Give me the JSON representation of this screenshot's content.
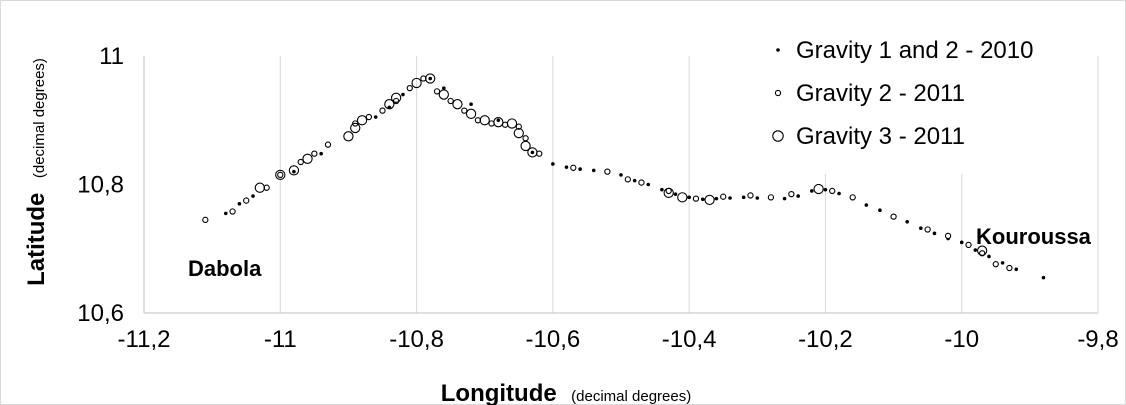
{
  "chart_data": {
    "type": "scatter",
    "xlabel": "Longitude",
    "xlabel_unit": "(decimal degrees)",
    "ylabel": "Latitude",
    "ylabel_unit": "(decimal degrees)",
    "xlim": [
      -11.2,
      -9.8
    ],
    "ylim": [
      10.6,
      11.0
    ],
    "x_ticks": [
      -11.2,
      -11.0,
      -10.8,
      -10.6,
      -10.4,
      -10.2,
      -10.0,
      -9.8
    ],
    "x_tick_labels": [
      "-11,2",
      "-11",
      "-10,8",
      "-10,6",
      "-10,4",
      "-10,2",
      "-10",
      "-9,8"
    ],
    "y_ticks": [
      10.6,
      10.8,
      11.0
    ],
    "y_tick_labels": [
      "10,6",
      "10,8",
      "11"
    ],
    "grid": "vertical",
    "legend_position": "top-right",
    "annotations": [
      {
        "text": "Dabola",
        "x": -11.06,
        "y": 10.69
      },
      {
        "text": "Kouroussa",
        "x": -9.9,
        "y": 10.72
      }
    ],
    "series": [
      {
        "name": "Gravity 1 and 2 - 2010",
        "marker": "dot",
        "points": [
          [
            -11.08,
            10.755
          ],
          [
            -11.06,
            10.77
          ],
          [
            -11.04,
            10.782
          ],
          [
            -10.98,
            10.82
          ],
          [
            -10.94,
            10.848
          ],
          [
            -10.86,
            10.905
          ],
          [
            -10.84,
            10.92
          ],
          [
            -10.82,
            10.94
          ],
          [
            -10.78,
            10.965
          ],
          [
            -10.76,
            10.95
          ],
          [
            -10.72,
            10.925
          ],
          [
            -10.68,
            10.9
          ],
          [
            -10.64,
            10.87
          ],
          [
            -10.63,
            10.85
          ],
          [
            -10.6,
            10.832
          ],
          [
            -10.58,
            10.827
          ],
          [
            -10.56,
            10.824
          ],
          [
            -10.54,
            10.822
          ],
          [
            -10.52,
            10.82
          ],
          [
            -10.5,
            10.815
          ],
          [
            -10.48,
            10.806
          ],
          [
            -10.46,
            10.8
          ],
          [
            -10.44,
            10.792
          ],
          [
            -10.42,
            10.785
          ],
          [
            -10.4,
            10.78
          ],
          [
            -10.38,
            10.777
          ],
          [
            -10.36,
            10.778
          ],
          [
            -10.34,
            10.779
          ],
          [
            -10.32,
            10.78
          ],
          [
            -10.3,
            10.779
          ],
          [
            -10.28,
            10.778
          ],
          [
            -10.26,
            10.778
          ],
          [
            -10.24,
            10.782
          ],
          [
            -10.22,
            10.79
          ],
          [
            -10.2,
            10.792
          ],
          [
            -10.18,
            10.786
          ],
          [
            -10.14,
            10.768
          ],
          [
            -10.12,
            10.76
          ],
          [
            -10.08,
            10.742
          ],
          [
            -10.06,
            10.732
          ],
          [
            -10.04,
            10.724
          ],
          [
            -10.02,
            10.716
          ],
          [
            -10.0,
            10.71
          ],
          [
            -9.98,
            10.698
          ],
          [
            -9.96,
            10.688
          ],
          [
            -9.94,
            10.678
          ],
          [
            -9.92,
            10.668
          ],
          [
            -9.88,
            10.655
          ]
        ]
      },
      {
        "name": "Gravity 2 - 2011",
        "marker": "small-circle",
        "points": [
          [
            -11.11,
            10.745
          ],
          [
            -11.07,
            10.758
          ],
          [
            -11.05,
            10.775
          ],
          [
            -11.02,
            10.795
          ],
          [
            -11.0,
            10.815
          ],
          [
            -10.97,
            10.835
          ],
          [
            -10.95,
            10.848
          ],
          [
            -10.93,
            10.862
          ],
          [
            -10.89,
            10.895
          ],
          [
            -10.87,
            10.905
          ],
          [
            -10.85,
            10.915
          ],
          [
            -10.83,
            10.93
          ],
          [
            -10.81,
            10.95
          ],
          [
            -10.79,
            10.965
          ],
          [
            -10.77,
            10.945
          ],
          [
            -10.75,
            10.93
          ],
          [
            -10.73,
            10.915
          ],
          [
            -10.71,
            10.9
          ],
          [
            -10.69,
            10.895
          ],
          [
            -10.67,
            10.893
          ],
          [
            -10.65,
            10.89
          ],
          [
            -10.64,
            10.872
          ],
          [
            -10.62,
            10.848
          ],
          [
            -10.57,
            10.826
          ],
          [
            -10.52,
            10.82
          ],
          [
            -10.49,
            10.808
          ],
          [
            -10.47,
            10.803
          ],
          [
            -10.43,
            10.79
          ],
          [
            -10.39,
            10.778
          ],
          [
            -10.35,
            10.781
          ],
          [
            -10.31,
            10.783
          ],
          [
            -10.28,
            10.78
          ],
          [
            -10.25,
            10.785
          ],
          [
            -10.19,
            10.79
          ],
          [
            -10.16,
            10.78
          ],
          [
            -10.1,
            10.75
          ],
          [
            -10.05,
            10.73
          ],
          [
            -10.02,
            10.72
          ],
          [
            -9.99,
            10.706
          ],
          [
            -9.97,
            10.693
          ],
          [
            -9.95,
            10.676
          ],
          [
            -9.93,
            10.67
          ]
        ]
      },
      {
        "name": "Gravity 3 - 2011",
        "marker": "large-circle",
        "points": [
          [
            -11.03,
            10.795
          ],
          [
            -11.0,
            10.815
          ],
          [
            -10.98,
            10.822
          ],
          [
            -10.96,
            10.84
          ],
          [
            -10.9,
            10.875
          ],
          [
            -10.89,
            10.888
          ],
          [
            -10.88,
            10.9
          ],
          [
            -10.84,
            10.925
          ],
          [
            -10.83,
            10.935
          ],
          [
            -10.8,
            10.958
          ],
          [
            -10.78,
            10.965
          ],
          [
            -10.76,
            10.94
          ],
          [
            -10.74,
            10.925
          ],
          [
            -10.72,
            10.91
          ],
          [
            -10.7,
            10.9
          ],
          [
            -10.68,
            10.897
          ],
          [
            -10.66,
            10.895
          ],
          [
            -10.65,
            10.88
          ],
          [
            -10.64,
            10.86
          ],
          [
            -10.63,
            10.85
          ],
          [
            -10.43,
            10.787
          ],
          [
            -10.41,
            10.78
          ],
          [
            -10.37,
            10.776
          ],
          [
            -10.21,
            10.793
          ],
          [
            -9.97,
            10.697
          ]
        ]
      }
    ]
  },
  "legend": {
    "items": [
      {
        "label": "Gravity 1 and 2 - 2010",
        "marker": "dot"
      },
      {
        "label": "Gravity 2 - 2011",
        "marker": "small-circle"
      },
      {
        "label": "Gravity 3 - 2011",
        "marker": "large-circle"
      }
    ]
  }
}
